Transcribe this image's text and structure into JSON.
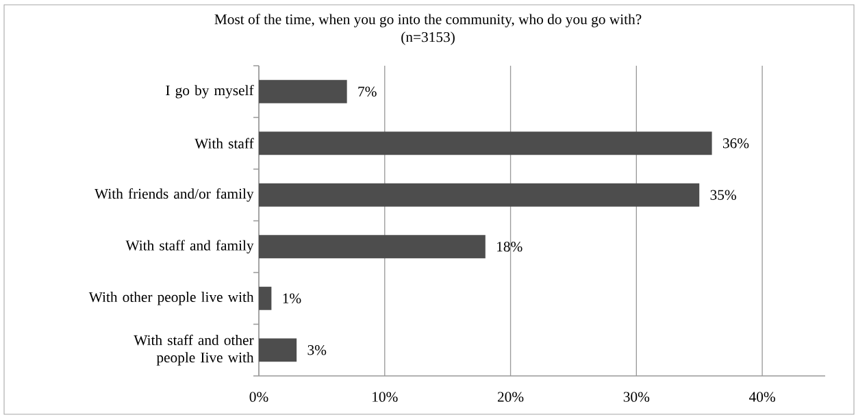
{
  "chart_data": {
    "type": "bar",
    "orientation": "horizontal",
    "title": "Most of the time, when you go into the community, who do you go with?",
    "subtitle": "(n=3153)",
    "categories": [
      "I go by myself",
      "With staff",
      "With friends and/or family",
      "With staff and family",
      "With other people live with",
      "With staff and other people Iive with"
    ],
    "values": [
      7,
      36,
      35,
      18,
      1,
      3
    ],
    "value_labels": [
      "7%",
      "36%",
      "35%",
      "18%",
      "1%",
      "3%"
    ],
    "color": "#4d4d4d",
    "xlim": [
      0,
      45
    ],
    "xticks": [
      {
        "value": 0,
        "label": "0%"
      },
      {
        "value": 10,
        "label": "10%"
      },
      {
        "value": 20,
        "label": "20%"
      },
      {
        "value": 30,
        "label": "30%"
      },
      {
        "value": 40,
        "label": "40%"
      }
    ],
    "grid": "x"
  }
}
